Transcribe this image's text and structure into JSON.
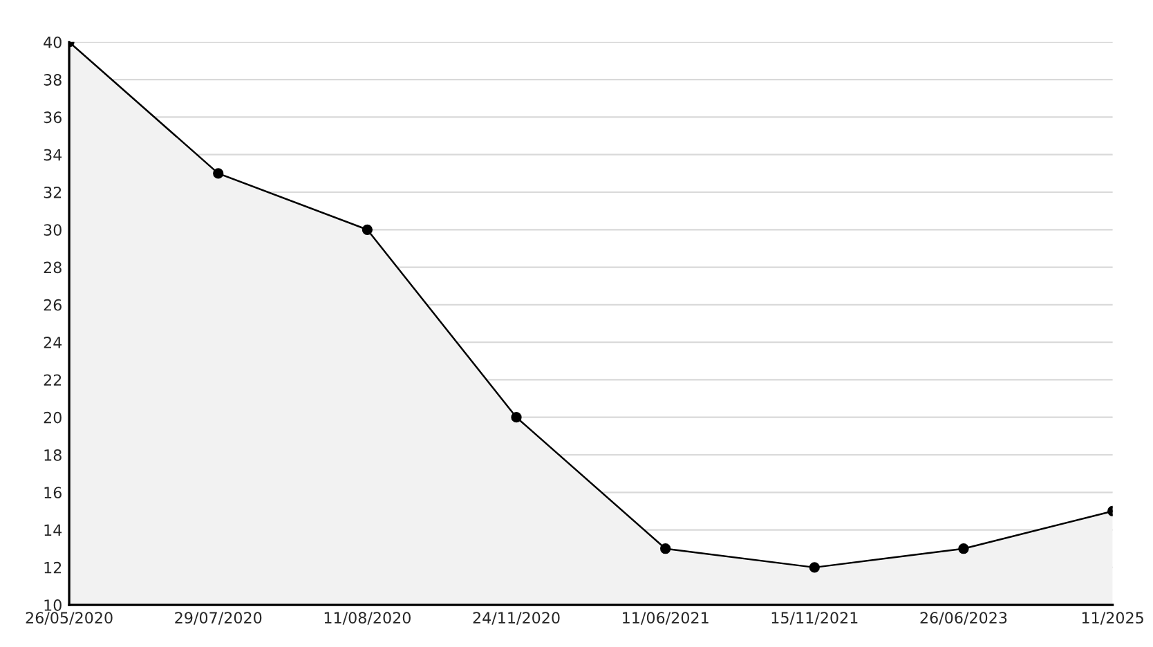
{
  "chart_data": {
    "type": "area",
    "categories": [
      "26/05/2020",
      "29/07/2020",
      "11/08/2020",
      "24/11/2020",
      "11/06/2021",
      "15/11/2021",
      "26/06/2023",
      "11/2025"
    ],
    "series": [
      {
        "color": "#000000",
        "values": [
          40,
          33,
          30,
          20,
          13,
          12,
          13,
          15
        ]
      }
    ],
    "ylim": [
      10,
      40
    ],
    "yticks": [
      10,
      12,
      14,
      16,
      18,
      20,
      22,
      24,
      26,
      28,
      30,
      32,
      34,
      36,
      38,
      40
    ],
    "grid": "y",
    "marker": "circle",
    "line_style": "solid"
  }
}
